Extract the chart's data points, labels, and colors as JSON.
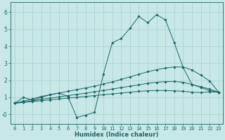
{
  "xlabel": "Humidex (Indice chaleur)",
  "background_color": "#c8e8e8",
  "grid_color": "#aacece",
  "line_color": "#1a6666",
  "xlim": [
    -0.5,
    23.5
  ],
  "ylim": [
    -0.55,
    6.6
  ],
  "xticks": [
    0,
    1,
    2,
    3,
    4,
    5,
    6,
    7,
    8,
    9,
    10,
    11,
    12,
    13,
    14,
    15,
    16,
    17,
    18,
    19,
    20,
    21,
    22,
    23
  ],
  "yticks": [
    0,
    1,
    2,
    3,
    4,
    5,
    6
  ],
  "ytick_labels": [
    "-0",
    "1",
    "2",
    "3",
    "4",
    "5",
    "6"
  ],
  "series": [
    {
      "x": [
        0,
        1,
        2,
        3,
        4,
        5,
        6,
        7,
        8,
        9,
        10,
        11,
        12,
        13,
        14,
        15,
        16,
        17,
        18,
        19,
        20,
        21,
        22,
        23
      ],
      "y": [
        0.65,
        1.0,
        0.82,
        1.0,
        1.15,
        1.25,
        1.05,
        -0.18,
        -0.05,
        0.12,
        2.35,
        4.2,
        4.45,
        5.05,
        5.75,
        5.38,
        5.85,
        5.55,
        4.2,
        2.75,
        1.75,
        1.58,
        1.38,
        1.3
      ]
    },
    {
      "x": [
        0,
        1,
        2,
        3,
        4,
        5,
        6,
        7,
        8,
        9,
        10,
        11,
        12,
        13,
        14,
        15,
        16,
        17,
        18,
        19,
        20,
        21,
        22,
        23
      ],
      "y": [
        0.65,
        0.78,
        0.9,
        1.05,
        1.15,
        1.25,
        1.35,
        1.45,
        1.55,
        1.65,
        1.78,
        1.9,
        2.05,
        2.2,
        2.35,
        2.5,
        2.62,
        2.72,
        2.78,
        2.78,
        2.6,
        2.3,
        1.95,
        1.3
      ]
    },
    {
      "x": [
        0,
        1,
        2,
        3,
        4,
        5,
        6,
        7,
        8,
        9,
        10,
        11,
        12,
        13,
        14,
        15,
        16,
        17,
        18,
        19,
        20,
        21,
        22,
        23
      ],
      "y": [
        0.65,
        0.72,
        0.8,
        0.88,
        0.95,
        1.02,
        1.1,
        1.17,
        1.24,
        1.32,
        1.4,
        1.48,
        1.57,
        1.65,
        1.73,
        1.82,
        1.88,
        1.92,
        1.93,
        1.88,
        1.75,
        1.62,
        1.48,
        1.3
      ]
    },
    {
      "x": [
        0,
        1,
        2,
        3,
        4,
        5,
        6,
        7,
        8,
        9,
        10,
        11,
        12,
        13,
        14,
        15,
        16,
        17,
        18,
        19,
        20,
        21,
        22,
        23
      ],
      "y": [
        0.65,
        0.7,
        0.75,
        0.8,
        0.85,
        0.9,
        0.95,
        1.0,
        1.05,
        1.1,
        1.15,
        1.2,
        1.25,
        1.3,
        1.35,
        1.38,
        1.4,
        1.4,
        1.38,
        1.35,
        1.3,
        1.28,
        1.32,
        1.3
      ]
    }
  ]
}
